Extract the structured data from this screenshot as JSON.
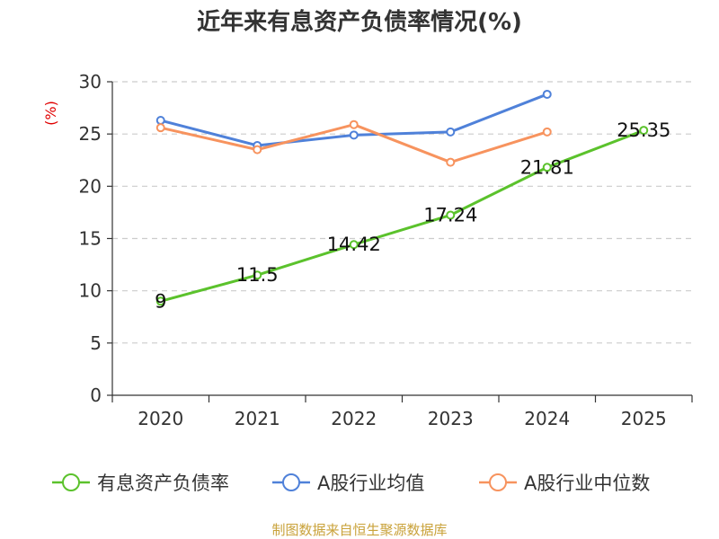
{
  "chart_data": {
    "type": "line",
    "title": "近年来有息资产负债率情况(%)",
    "ylabel": "(%)",
    "xlabel": "",
    "categories": [
      "2020",
      "2021",
      "2022",
      "2023",
      "2024",
      "2025"
    ],
    "ylim": [
      0,
      30
    ],
    "yticks": [
      0,
      5,
      10,
      15,
      20,
      25,
      30
    ],
    "grid": true,
    "legend_position": "bottom",
    "series": [
      {
        "name": "有息资产负债率",
        "color": "#5bc22c",
        "values": [
          9,
          11.5,
          14.42,
          17.24,
          21.81,
          25.35
        ],
        "labels": [
          "9",
          "11.5",
          "14.42",
          "17.24",
          "21.81",
          "25.35"
        ]
      },
      {
        "name": "A股行业均值",
        "color": "#4f81d9",
        "values": [
          26.3,
          23.9,
          24.9,
          25.2,
          28.8,
          null
        ]
      },
      {
        "name": "A股行业中位数",
        "color": "#f7935e",
        "values": [
          25.6,
          23.5,
          25.9,
          22.3,
          25.2,
          null
        ]
      }
    ]
  },
  "source": "制图数据来自恒生聚源数据库"
}
